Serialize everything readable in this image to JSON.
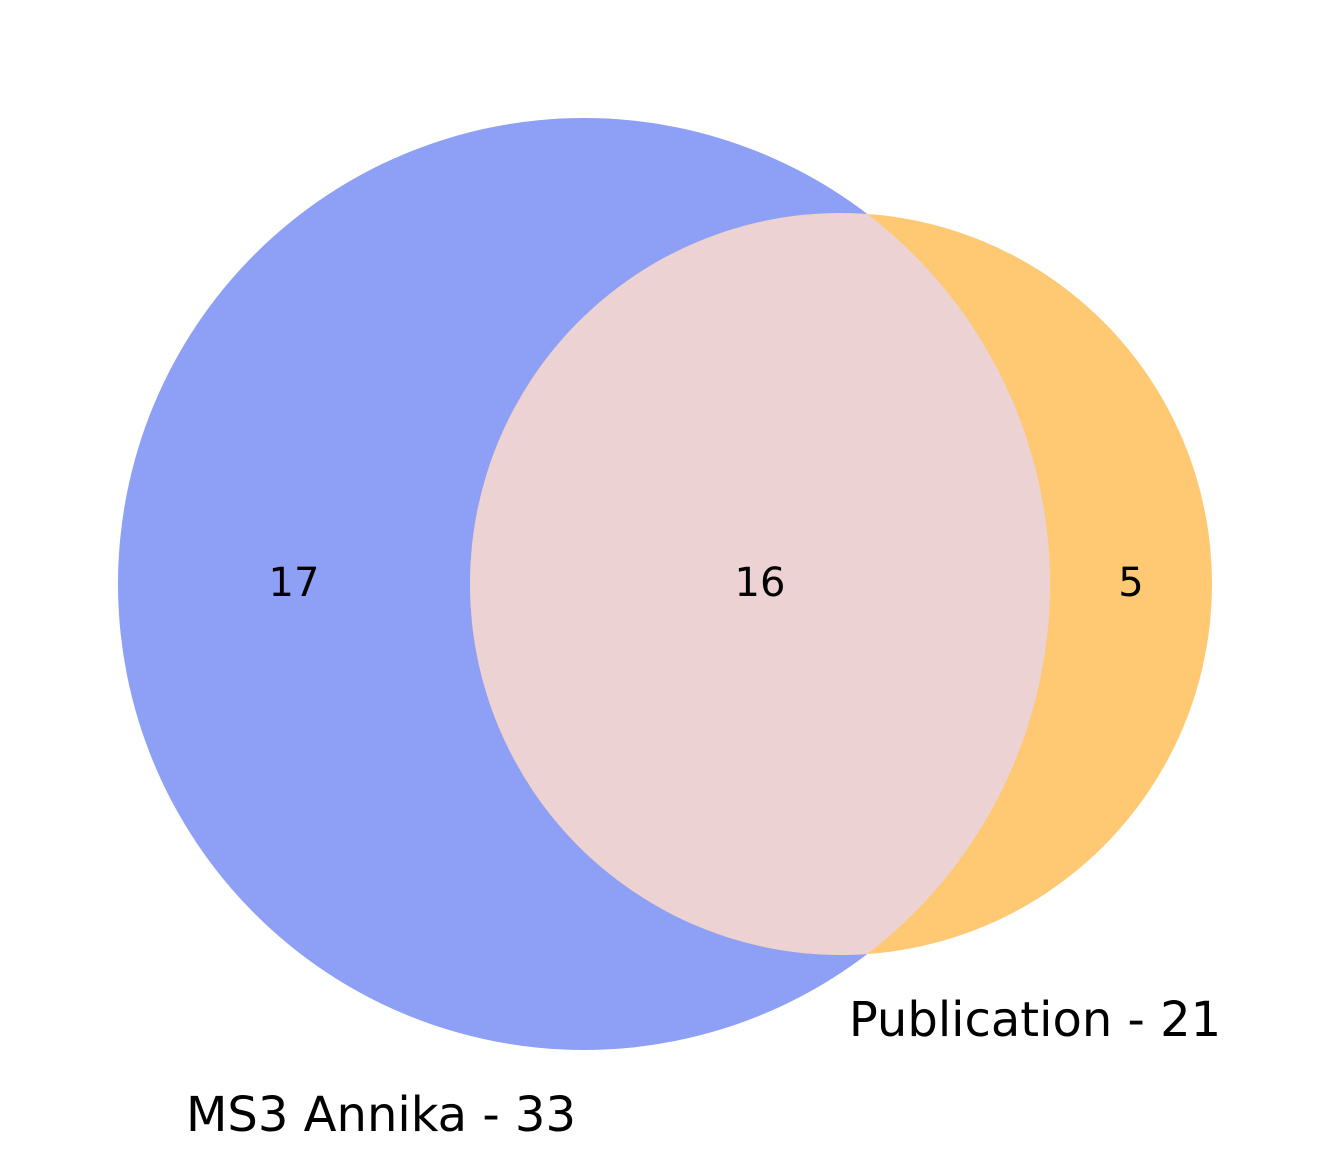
{
  "venn": {
    "sets": [
      {
        "name": "MS3 Annika - 33",
        "size": 33,
        "color": "#8da0f5"
      },
      {
        "name": "Publication - 21",
        "size": 21,
        "color": "#ffc872"
      }
    ],
    "regions": {
      "only_a": "17",
      "intersection": "16",
      "only_b": "5"
    },
    "intersection_color": "#ecd2d3"
  }
}
